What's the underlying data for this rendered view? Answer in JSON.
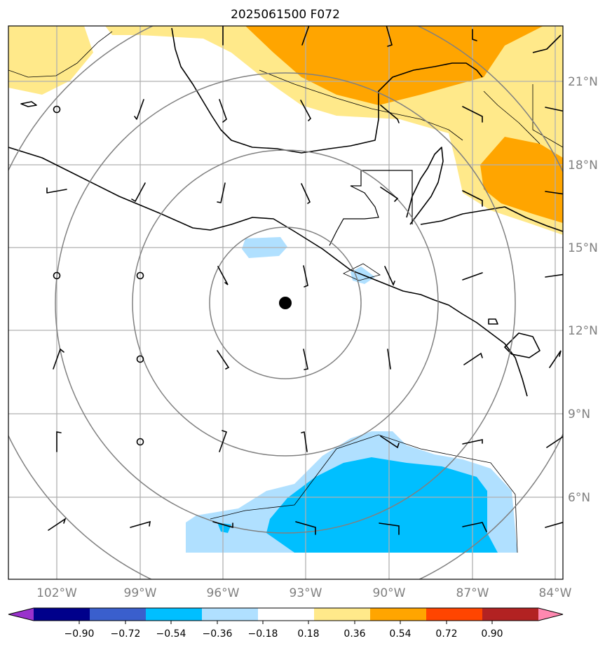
{
  "title": "2025061500 F072",
  "center_marker": {
    "lon": -93.85,
    "lat": 13.0
  },
  "range_rings": {
    "count": 4
  },
  "lat_labels": [
    "21°N",
    "18°N",
    "15°N",
    "12°N",
    "9°N",
    "6°N"
  ],
  "lon_labels": [
    "102°W",
    "99°W",
    "96°W",
    "93°W",
    "90°W",
    "87°W",
    "84°W"
  ],
  "lat_values": [
    21,
    18,
    15,
    12,
    9,
    6
  ],
  "lon_values": [
    -102,
    -99,
    -96,
    -93,
    -90,
    -87,
    -84
  ],
  "colorbar": {
    "tick_labels": [
      "−0.90",
      "−0.72",
      "−0.54",
      "−0.36",
      "−0.18",
      "0.18",
      "0.36",
      "0.54",
      "0.72",
      "0.90"
    ],
    "colors": [
      "#9932cc",
      "#00008b",
      "#3a5fcd",
      "#00bfff",
      "#b0e0ff",
      "#ffffff",
      "#ffe98a",
      "#ffa500",
      "#ff4500",
      "#b22222",
      "#ff88b0"
    ]
  },
  "colors": {
    "light_yellow": "#ffe98a",
    "orange": "#ffa500",
    "light_blue": "#b0e0ff",
    "deep_sky_blue": "#00bfff",
    "grid": "#b0b0b0",
    "ring": "#808080"
  }
}
